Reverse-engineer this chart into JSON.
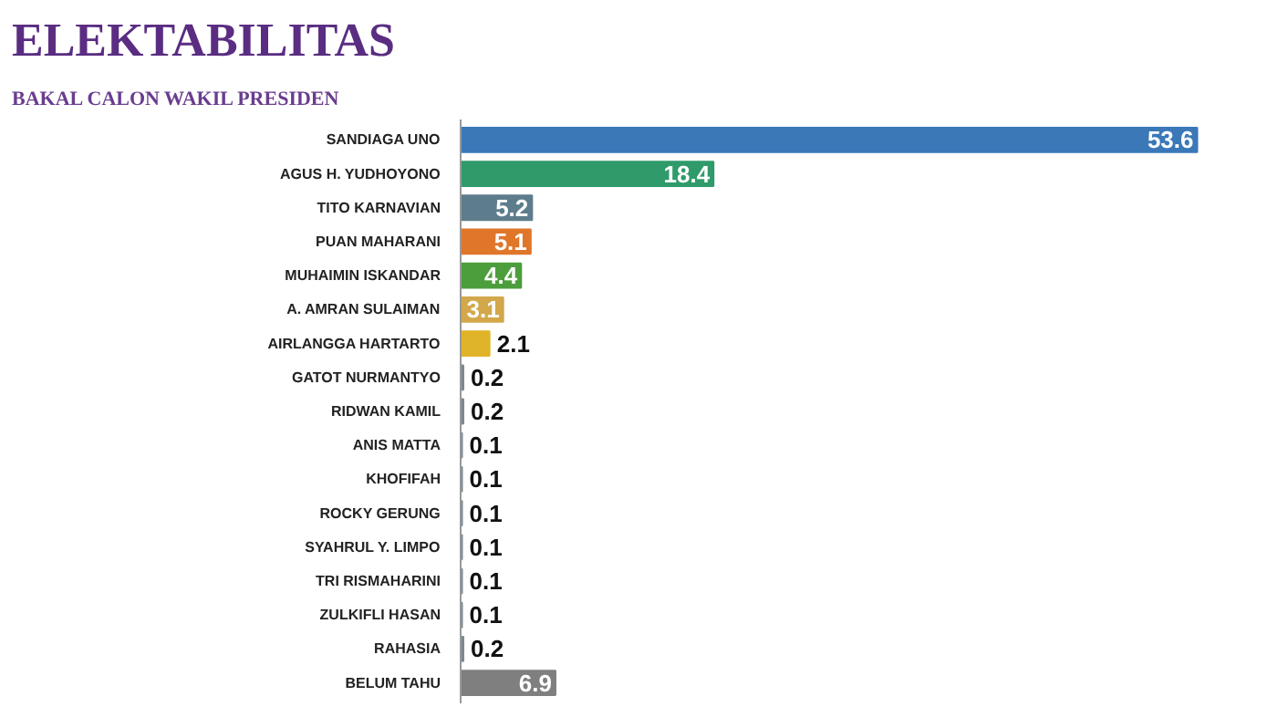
{
  "chart_data": {
    "type": "bar",
    "orientation": "horizontal",
    "title": "ELEKTABILITAS",
    "subtitle": "BAKAL CALON WAKIL PRESIDEN",
    "categories": [
      "SANDIAGA UNO",
      "AGUS H. YUDHOYONO",
      "TITO KARNAVIAN",
      "PUAN MAHARANI",
      "MUHAIMIN ISKANDAR",
      "A. AMRAN SULAIMAN",
      "AIRLANGGA HARTARTO",
      "GATOT NURMANTYO",
      "RIDWAN KAMIL",
      "ANIS MATTA",
      "KHOFIFAH",
      "ROCKY GERUNG",
      "SYAHRUL Y. LIMPO",
      "TRI RISMAHARINI",
      "ZULKIFLI HASAN",
      "RAHASIA",
      "BELUM TAHU"
    ],
    "values": [
      53.6,
      18.4,
      5.2,
      5.1,
      4.4,
      3.1,
      2.1,
      0.2,
      0.2,
      0.1,
      0.1,
      0.1,
      0.1,
      0.1,
      0.1,
      0.2,
      6.9
    ],
    "colors": [
      "#3a78b8",
      "#2f9a6a",
      "#5d7d8c",
      "#e0762a",
      "#4c9e3c",
      "#d2a84a",
      "#e0b428",
      "#7a8a94",
      "#7a8a94",
      "#7a8a94",
      "#7a8a94",
      "#7a8a94",
      "#7a8a94",
      "#7a8a94",
      "#7a8a94",
      "#7a8a94",
      "#7f7f7f"
    ],
    "data_labels": true,
    "grid": false
  }
}
